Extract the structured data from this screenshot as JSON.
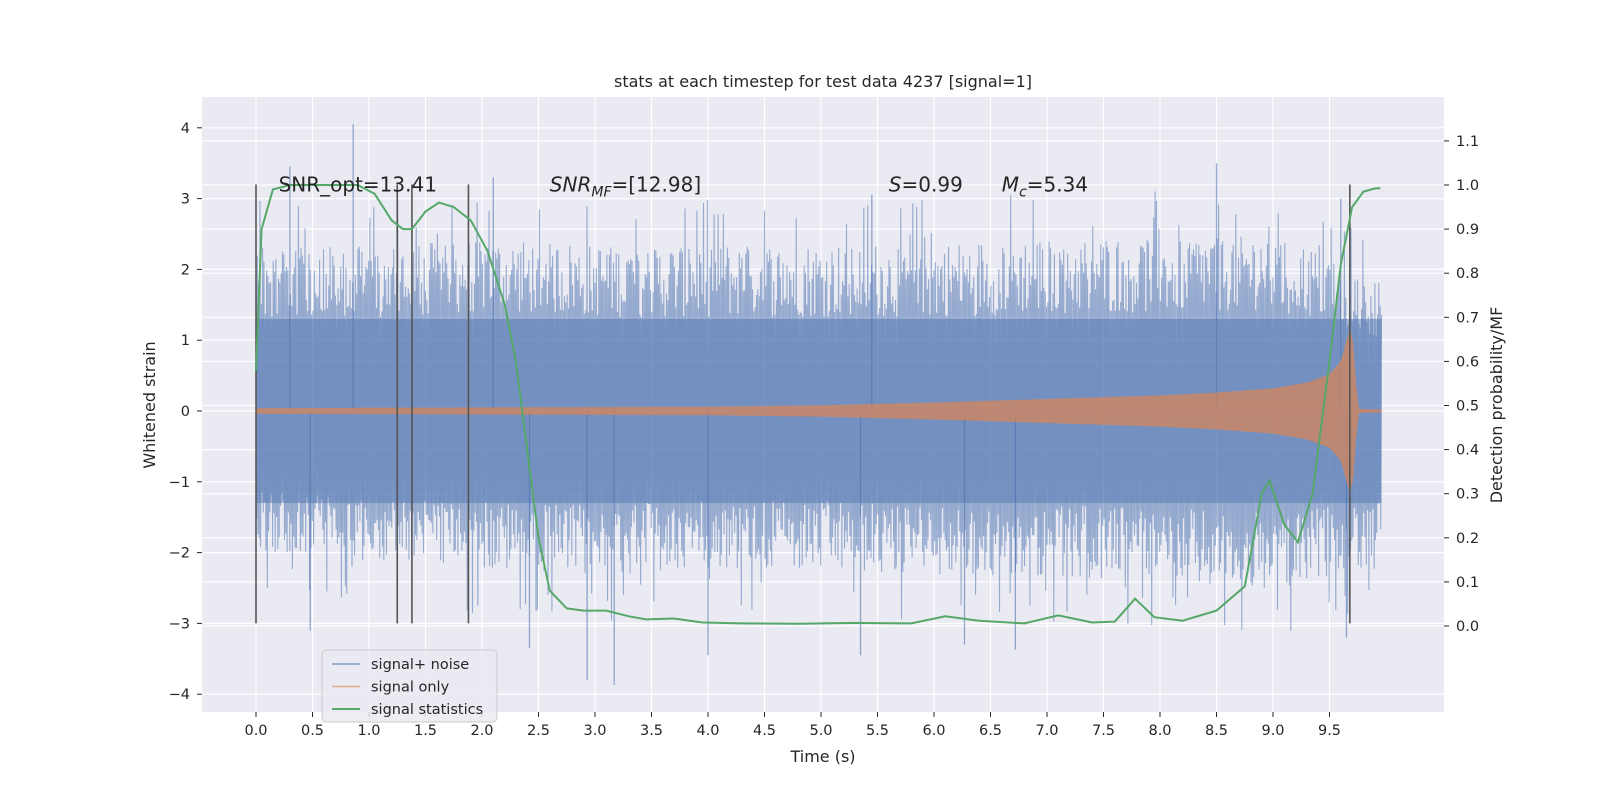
{
  "chart_data": {
    "type": "line",
    "title": "stats at each timestep for test data 4237 [signal=1]",
    "xlabel": "Time (s)",
    "ylabel": "Whitened strain",
    "y2label": "Detection probability/MF",
    "xlim": [
      -0.5,
      10.5
    ],
    "ylim": [
      -4.2,
      4.4
    ],
    "y2lim": [
      -0.2,
      1.2
    ],
    "x_ticks": [
      "0.0",
      "0.5",
      "1.0",
      "1.5",
      "2.0",
      "2.5",
      "3.0",
      "3.5",
      "4.0",
      "4.5",
      "5.0",
      "5.5",
      "6.0",
      "6.5",
      "7.0",
      "7.5",
      "8.0",
      "8.5",
      "9.0",
      "9.5"
    ],
    "y_ticks": [
      "−4",
      "−3",
      "−2",
      "−1",
      "0",
      "1",
      "2",
      "3",
      "4"
    ],
    "y2_ticks": [
      "0.0",
      "0.1",
      "0.2",
      "0.3",
      "0.4",
      "0.5",
      "0.6",
      "0.7",
      "0.8",
      "0.9",
      "1.0",
      "1.1"
    ],
    "grid": true,
    "legend_position": "lower-left",
    "annotations": [
      {
        "text": "SNR_opt=13.41",
        "x": 0.2,
        "y": 3.2
      },
      {
        "text": "SNR",
        "sub": "MF",
        "suffix": "=[12.98]",
        "x": 2.6,
        "y": 3.2
      },
      {
        "text": "S",
        "suffix": "=0.99",
        "x": 5.6,
        "y": 3.2
      },
      {
        "text": "M",
        "sub": "c",
        "suffix": "=5.34",
        "x": 6.6,
        "y": 3.2
      }
    ],
    "vertical_lines": [
      {
        "x": 0.0,
        "y_range": [
          -3.0,
          3.2
        ]
      },
      {
        "x": 1.25,
        "y_range": [
          -3.0,
          3.2
        ]
      },
      {
        "x": 1.38,
        "y_range": [
          -3.0,
          3.2
        ]
      },
      {
        "x": 1.88,
        "y_range": [
          -3.0,
          3.2
        ]
      },
      {
        "x": 9.68,
        "y_range": [
          -3.0,
          3.2
        ]
      }
    ],
    "series": [
      {
        "name": "signal+ noise",
        "axis": "left",
        "color": "#4c72b0",
        "x_range": [
          0.0,
          9.96
        ],
        "band_envelope": {
          "x": [
            0.0,
            1.0,
            2.0,
            3.0,
            4.0,
            5.0,
            6.0,
            7.0,
            8.0,
            9.0,
            9.96
          ],
          "upper_typical": [
            2.4,
            2.4,
            2.5,
            2.4,
            2.4,
            2.4,
            2.4,
            2.5,
            2.5,
            2.6,
            1.9
          ],
          "lower_typical": [
            -2.1,
            -2.2,
            -2.3,
            -2.4,
            -2.3,
            -2.3,
            -2.4,
            -2.4,
            -2.5,
            -2.6,
            -2.3
          ]
        },
        "spikes": [
          {
            "x": 0.3,
            "y": 3.45
          },
          {
            "x": 0.86,
            "y": 4.05
          },
          {
            "x": 2.1,
            "y": 3.3
          },
          {
            "x": 5.45,
            "y": 3.05
          },
          {
            "x": 8.5,
            "y": 3.5
          },
          {
            "x": 9.6,
            "y": 3.0
          },
          {
            "x": 0.48,
            "y": -3.1
          },
          {
            "x": 2.42,
            "y": -3.35
          },
          {
            "x": 2.93,
            "y": -3.8
          },
          {
            "x": 3.17,
            "y": -3.87
          },
          {
            "x": 4.0,
            "y": -3.45
          },
          {
            "x": 5.35,
            "y": -3.45
          },
          {
            "x": 6.27,
            "y": -3.3
          },
          {
            "x": 6.72,
            "y": -3.37
          },
          {
            "x": 9.65,
            "y": -3.2
          }
        ]
      },
      {
        "name": "signal only",
        "axis": "left",
        "color": "#dd8452",
        "x_range": [
          0.0,
          9.96
        ],
        "amplitude_envelope": {
          "x": [
            0.0,
            2.0,
            4.0,
            5.0,
            6.0,
            7.0,
            8.0,
            8.5,
            9.0,
            9.3,
            9.5,
            9.6,
            9.66,
            9.7,
            9.75,
            9.96
          ],
          "amplitude": [
            0.04,
            0.05,
            0.06,
            0.08,
            0.12,
            0.17,
            0.22,
            0.26,
            0.32,
            0.4,
            0.52,
            0.7,
            1.05,
            1.2,
            0.03,
            0.02
          ]
        }
      },
      {
        "name": "signal statistics",
        "axis": "right",
        "color": "#55a868",
        "points": [
          [
            0.0,
            0.58
          ],
          [
            0.05,
            0.9
          ],
          [
            0.15,
            0.99
          ],
          [
            0.3,
            1.0
          ],
          [
            0.6,
            1.0
          ],
          [
            0.9,
            1.0
          ],
          [
            1.05,
            0.98
          ],
          [
            1.2,
            0.92
          ],
          [
            1.3,
            0.9
          ],
          [
            1.38,
            0.9
          ],
          [
            1.5,
            0.94
          ],
          [
            1.62,
            0.96
          ],
          [
            1.75,
            0.95
          ],
          [
            1.9,
            0.92
          ],
          [
            2.05,
            0.85
          ],
          [
            2.2,
            0.73
          ],
          [
            2.3,
            0.6
          ],
          [
            2.4,
            0.4
          ],
          [
            2.5,
            0.2
          ],
          [
            2.6,
            0.08
          ],
          [
            2.75,
            0.04
          ],
          [
            2.9,
            0.035
          ],
          [
            3.1,
            0.035
          ],
          [
            3.3,
            0.022
          ],
          [
            3.45,
            0.015
          ],
          [
            3.7,
            0.017
          ],
          [
            3.95,
            0.008
          ],
          [
            4.3,
            0.006
          ],
          [
            4.8,
            0.005
          ],
          [
            5.3,
            0.007
          ],
          [
            5.8,
            0.006
          ],
          [
            6.1,
            0.022
          ],
          [
            6.4,
            0.012
          ],
          [
            6.8,
            0.006
          ],
          [
            7.1,
            0.024
          ],
          [
            7.4,
            0.008
          ],
          [
            7.6,
            0.01
          ],
          [
            7.78,
            0.062
          ],
          [
            7.95,
            0.02
          ],
          [
            8.2,
            0.012
          ],
          [
            8.5,
            0.035
          ],
          [
            8.75,
            0.09
          ],
          [
            8.9,
            0.3
          ],
          [
            8.97,
            0.33
          ],
          [
            9.1,
            0.23
          ],
          [
            9.22,
            0.19
          ],
          [
            9.35,
            0.3
          ],
          [
            9.5,
            0.6
          ],
          [
            9.6,
            0.82
          ],
          [
            9.7,
            0.95
          ],
          [
            9.8,
            0.985
          ],
          [
            9.9,
            0.992
          ],
          [
            9.95,
            0.993
          ]
        ]
      }
    ]
  }
}
